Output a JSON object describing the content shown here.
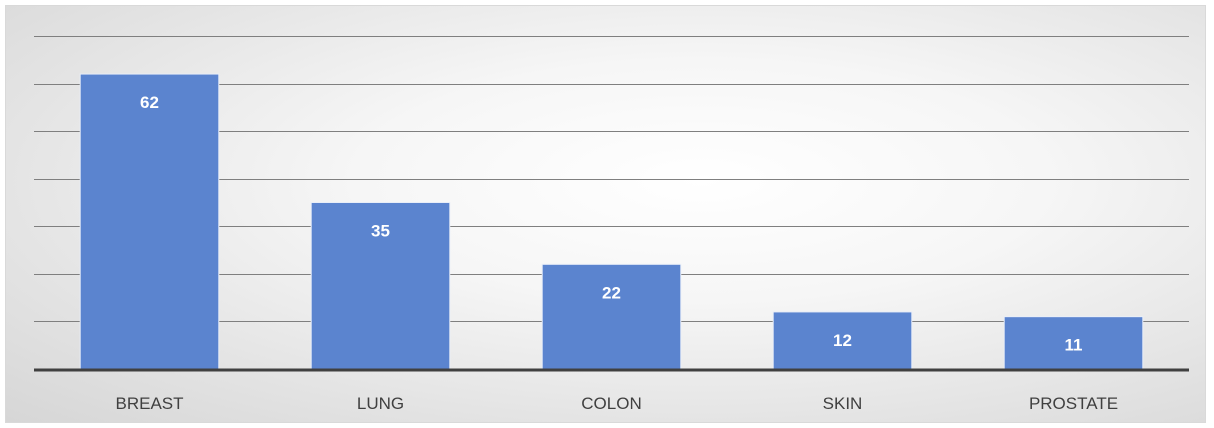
{
  "chart_data": {
    "type": "bar",
    "categories": [
      "BREAST",
      "LUNG",
      "COLON",
      "SKIN",
      "PROSTATE"
    ],
    "values": [
      62,
      35,
      22,
      12,
      11
    ],
    "ylim": [
      0,
      70
    ],
    "grid": true,
    "data_labels": true,
    "bar_color": "#5b84cf",
    "bar_edge_color": "#e9eef8",
    "gridline_color": "#7f7f7f",
    "axis_color": "#404040"
  }
}
